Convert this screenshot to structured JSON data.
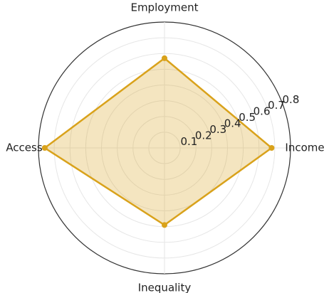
{
  "chart_data": {
    "type": "radar",
    "categories": [
      "Income",
      "Employment",
      "Access",
      "Inequality"
    ],
    "values": [
      0.68,
      0.57,
      0.76,
      0.49
    ],
    "color": "#d9a21b",
    "ylim": [
      0,
      0.8
    ],
    "yticks": [
      0.1,
      0.2,
      0.3,
      0.4,
      0.5,
      0.6,
      0.7,
      0.8
    ],
    "grid": true
  }
}
